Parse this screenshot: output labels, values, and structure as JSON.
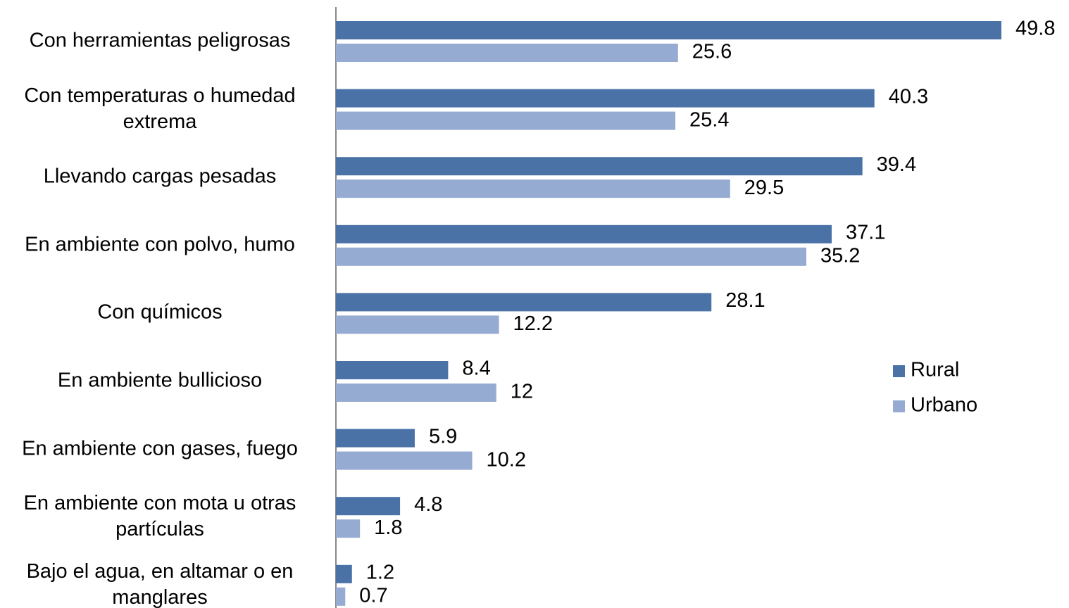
{
  "chart_data": {
    "type": "barh",
    "categories": [
      "Con herramientas peligrosas ",
      "Con temperaturas o humedad extrema",
      "Llevando cargas pesadas",
      "En ambiente con polvo, humo",
      "Con químicos ",
      "En ambiente bullicioso",
      "En ambiente con gases, fuego",
      "En ambiente con mota u otras partículas",
      "Bajo el agua, en altamar o en manglares"
    ],
    "series": [
      {
        "name": "Rural",
        "color": "#4a72a6",
        "values": [
          49.8,
          40.3,
          39.4,
          37.1,
          28.1,
          8.4,
          5.9,
          4.8,
          1.2
        ]
      },
      {
        "name": "Urbano",
        "color": "#95abd2",
        "values": [
          25.6,
          25.4,
          29.5,
          35.2,
          12.2,
          12,
          10.2,
          1.8,
          0.7
        ]
      }
    ]
  }
}
